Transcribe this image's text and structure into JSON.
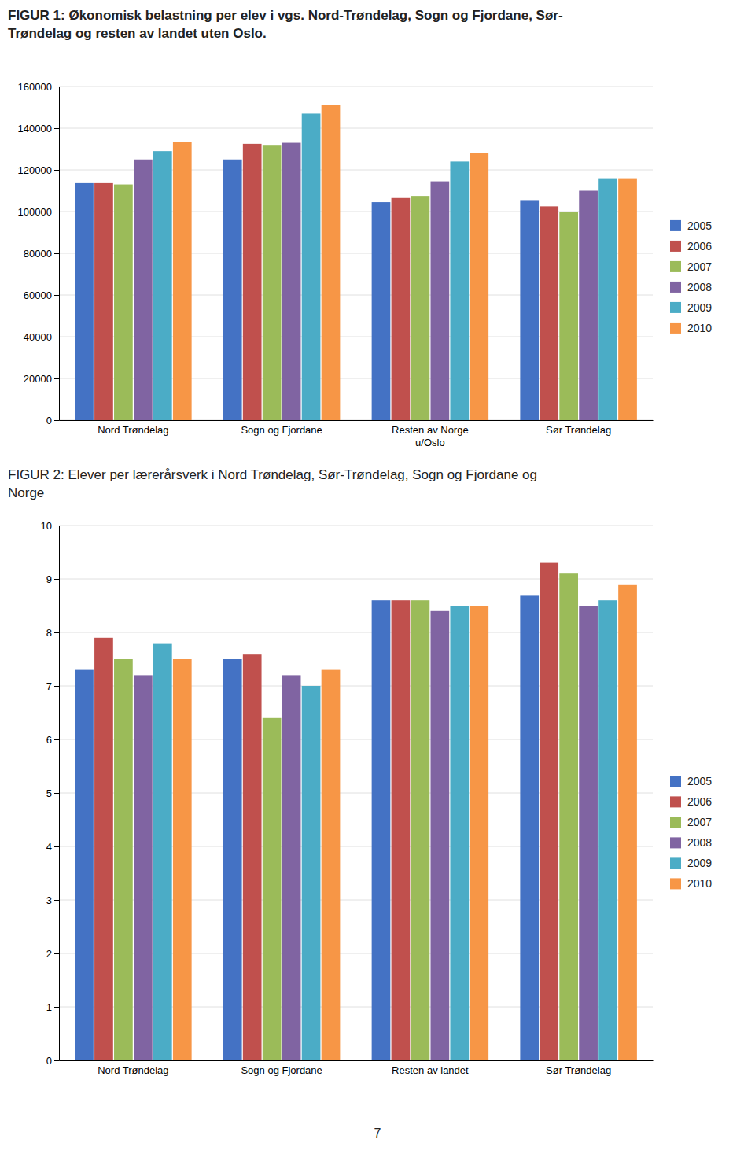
{
  "chart_data": [
    {
      "type": "bar",
      "title": "FIGUR 1: Økonomisk belastning per elev i vgs. Nord-Trøndelag, Sogn og Fjordane, Sør-\nTrøndelag og resten av landet uten Oslo.",
      "categories": [
        "Nord Trøndelag",
        "Sogn og Fjordane",
        "Resten av Norge\nu/Oslo",
        "Sør Trøndelag"
      ],
      "series": [
        {
          "name": "2005",
          "color": "#4472C4",
          "values": [
            114000,
            125000,
            104500,
            105500
          ]
        },
        {
          "name": "2006",
          "color": "#C0504D",
          "values": [
            114000,
            132500,
            106500,
            102500
          ]
        },
        {
          "name": "2007",
          "color": "#9BBB59",
          "values": [
            113000,
            132000,
            107500,
            100000
          ]
        },
        {
          "name": "2008",
          "color": "#8064A2",
          "values": [
            125000,
            133000,
            114500,
            110000
          ]
        },
        {
          "name": "2009",
          "color": "#4BACC6",
          "values": [
            129000,
            147000,
            124000,
            116000
          ]
        },
        {
          "name": "2010",
          "color": "#F79646",
          "values": [
            133500,
            151000,
            128000,
            116000
          ]
        }
      ],
      "ylim": [
        0,
        160000
      ],
      "yticks": [
        0,
        20000,
        40000,
        60000,
        80000,
        100000,
        120000,
        140000,
        160000
      ],
      "grid": true,
      "legend": "right"
    },
    {
      "type": "bar",
      "title": "FIGUR 2: Elever per lærerårsverk i Nord Trøndelag, Sør-Trøndelag, Sogn og Fjordane og\nNorge",
      "categories": [
        "Nord Trøndelag",
        "Sogn og Fjordane",
        "Resten av landet",
        "Sør Trøndelag"
      ],
      "series": [
        {
          "name": "2005",
          "color": "#4472C4",
          "values": [
            7.3,
            7.5,
            8.6,
            8.7
          ]
        },
        {
          "name": "2006",
          "color": "#C0504D",
          "values": [
            7.9,
            7.6,
            8.6,
            9.3
          ]
        },
        {
          "name": "2007",
          "color": "#9BBB59",
          "values": [
            7.5,
            6.4,
            8.6,
            9.1
          ]
        },
        {
          "name": "2008",
          "color": "#8064A2",
          "values": [
            7.2,
            7.2,
            8.4,
            8.5
          ]
        },
        {
          "name": "2009",
          "color": "#4BACC6",
          "values": [
            7.8,
            7.0,
            8.5,
            8.6
          ]
        },
        {
          "name": "2010",
          "color": "#F79646",
          "values": [
            7.5,
            7.3,
            8.5,
            8.9
          ]
        }
      ],
      "ylim": [
        0,
        10
      ],
      "yticks": [
        0,
        1,
        2,
        3,
        4,
        5,
        6,
        7,
        8,
        9,
        10
      ],
      "grid": true,
      "legend": "right",
      "annotations": [
        "7"
      ]
    }
  ]
}
